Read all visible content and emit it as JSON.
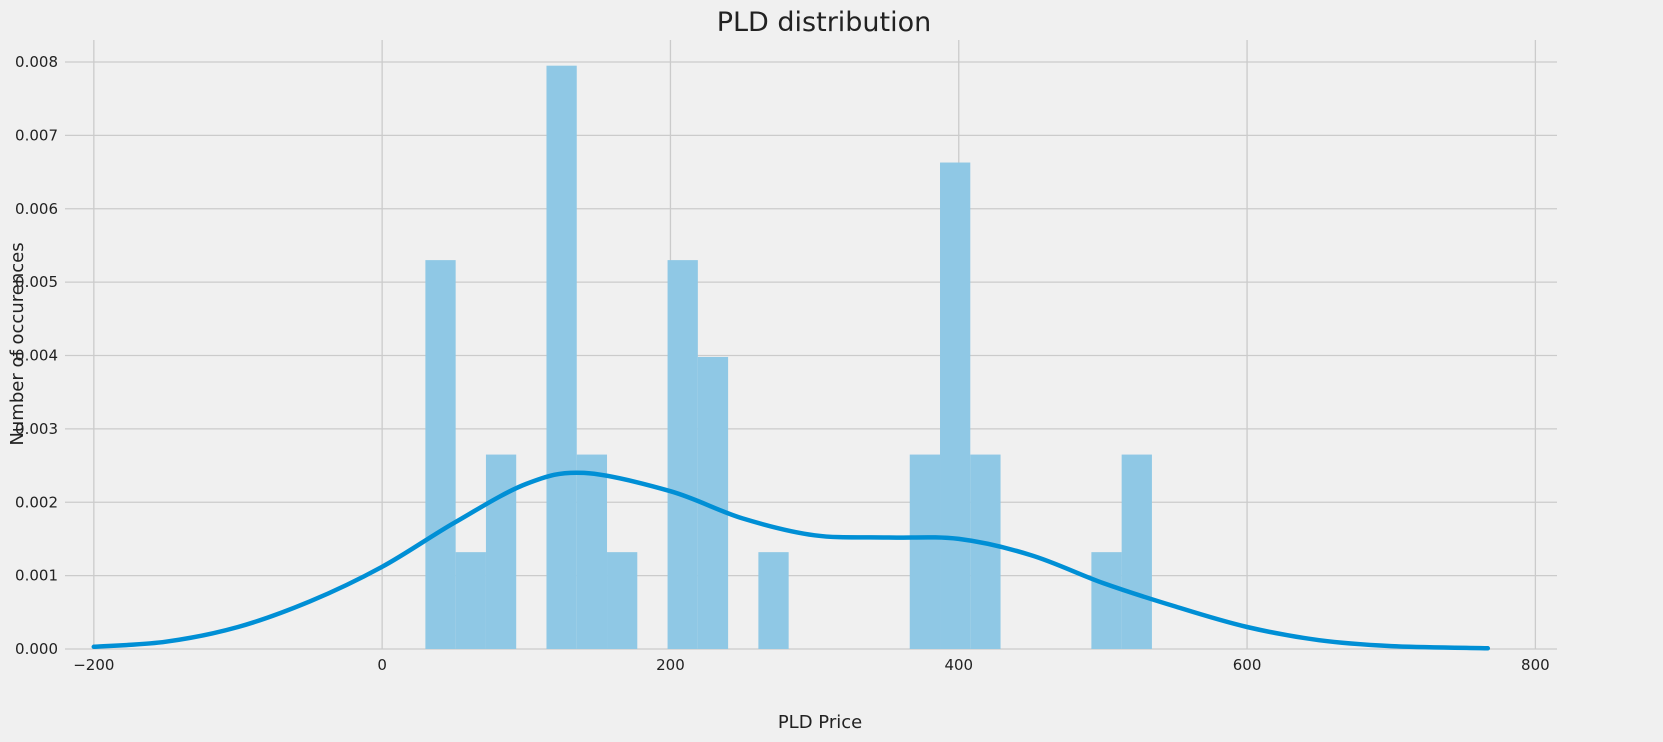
{
  "chart_data": {
    "type": "histogram",
    "title": "PLD distribution",
    "xlabel": "PLD Price",
    "ylabel": "Number of occurences",
    "xlim": [
      -220,
      815
    ],
    "ylim": [
      0,
      0.0083
    ],
    "x_ticks": [
      -200,
      0,
      200,
      400,
      600,
      800
    ],
    "x_tick_labels": [
      "−200",
      "0",
      "200",
      "400",
      "600",
      "800"
    ],
    "y_ticks": [
      0,
      0.001,
      0.002,
      0.003,
      0.004,
      0.005,
      0.006,
      0.007,
      0.008
    ],
    "y_tick_labels": [
      "0.000",
      "0.001",
      "0.002",
      "0.003",
      "0.004",
      "0.005",
      "0.006",
      "0.007",
      "0.008"
    ],
    "grid": true,
    "bin_width": 21,
    "bars": [
      {
        "x0": 30,
        "x1": 51,
        "value": 0.0053
      },
      {
        "x0": 51,
        "x1": 72,
        "value": 0.00132
      },
      {
        "x0": 72,
        "x1": 93,
        "value": 0.00265
      },
      {
        "x0": 114,
        "x1": 135,
        "value": 0.00795
      },
      {
        "x0": 135,
        "x1": 156,
        "value": 0.00265
      },
      {
        "x0": 156,
        "x1": 177,
        "value": 0.00132
      },
      {
        "x0": 198,
        "x1": 219,
        "value": 0.0053
      },
      {
        "x0": 219,
        "x1": 240,
        "value": 0.00398
      },
      {
        "x0": 261,
        "x1": 282,
        "value": 0.00132
      },
      {
        "x0": 366,
        "x1": 387,
        "value": 0.00265
      },
      {
        "x0": 387,
        "x1": 408,
        "value": 0.00663
      },
      {
        "x0": 408,
        "x1": 429,
        "value": 0.00265
      },
      {
        "x0": 492,
        "x1": 513,
        "value": 0.00132
      },
      {
        "x0": 513,
        "x1": 534,
        "value": 0.00265
      }
    ],
    "kde": {
      "x": [
        -200,
        -150,
        -100,
        -50,
        0,
        50,
        100,
        140,
        200,
        250,
        300,
        350,
        400,
        450,
        500,
        550,
        600,
        650,
        700,
        767
      ],
      "y": [
        3e-05,
        0.0001,
        0.0003,
        0.00065,
        0.00112,
        0.00172,
        0.00225,
        0.0024,
        0.00215,
        0.00178,
        0.00155,
        0.00152,
        0.0015,
        0.00128,
        0.0009,
        0.00058,
        0.0003,
        0.00012,
        4e-05,
        1e-05
      ]
    },
    "colors": {
      "bars": "#8fc8e5",
      "kde": "#008fd5",
      "grid": "#cbcbcb",
      "background": "#f0f0f0"
    }
  }
}
